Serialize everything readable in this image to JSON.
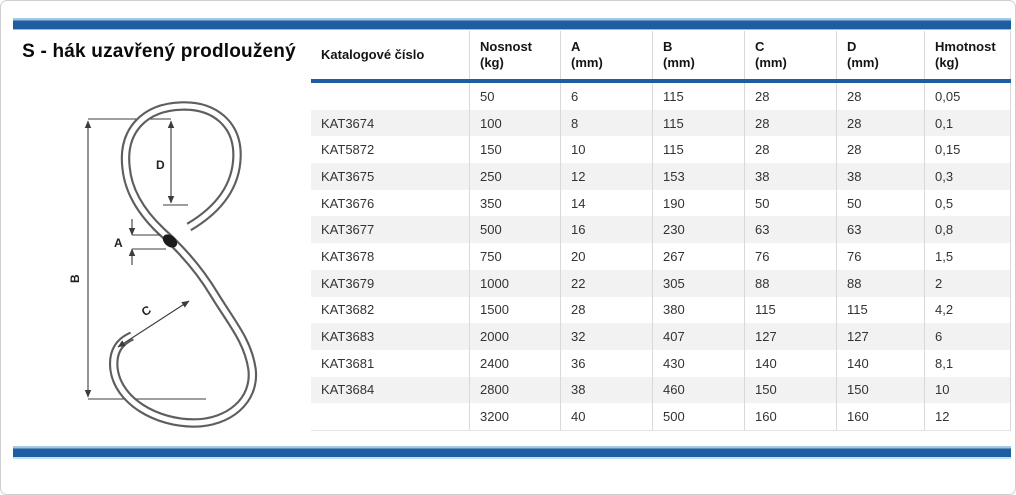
{
  "page": {
    "title": "S - hák uzavřený prodloužený"
  },
  "diagram": {
    "labels": [
      "A",
      "B",
      "C",
      "D"
    ]
  },
  "table": {
    "columns": [
      {
        "label": "Katalogové číslo",
        "unit": ""
      },
      {
        "label": "Nosnost",
        "unit": "(kg)"
      },
      {
        "label": "A",
        "unit": "(mm)"
      },
      {
        "label": "B",
        "unit": "(mm)"
      },
      {
        "label": "C",
        "unit": "(mm)"
      },
      {
        "label": "D",
        "unit": "(mm)"
      },
      {
        "label": "Hmotnost",
        "unit": "(kg)"
      }
    ],
    "rows": [
      [
        "",
        "50",
        "6",
        "115",
        "28",
        "28",
        "0,05"
      ],
      [
        "KAT3674",
        "100",
        "8",
        "115",
        "28",
        "28",
        "0,1"
      ],
      [
        "KAT5872",
        "150",
        "10",
        "115",
        "28",
        "28",
        "0,15"
      ],
      [
        "KAT3675",
        "250",
        "12",
        "153",
        "38",
        "38",
        "0,3"
      ],
      [
        "KAT3676",
        "350",
        "14",
        "190",
        "50",
        "50",
        "0,5"
      ],
      [
        "KAT3677",
        "500",
        "16",
        "230",
        "63",
        "63",
        "0,8"
      ],
      [
        "KAT3678",
        "750",
        "20",
        "267",
        "76",
        "76",
        "1,5"
      ],
      [
        "KAT3679",
        "1000",
        "22",
        "305",
        "88",
        "88",
        "2"
      ],
      [
        "KAT3682",
        "1500",
        "28",
        "380",
        "115",
        "115",
        "4,2"
      ],
      [
        "KAT3683",
        "2000",
        "32",
        "407",
        "127",
        "127",
        "6"
      ],
      [
        "KAT3681",
        "2400",
        "36",
        "430",
        "140",
        "140",
        "8,1"
      ],
      [
        "KAT3684",
        "2800",
        "38",
        "460",
        "150",
        "150",
        "10"
      ],
      [
        "",
        "3200",
        "40",
        "500",
        "160",
        "160",
        "12"
      ]
    ]
  },
  "colors": {
    "accent": "#1f5da3",
    "bar_highlight": "#a9cde8",
    "bar_underline": "#bfe2f3",
    "row_alt": "#f2f2f2",
    "grid": "#d9d9d9"
  }
}
